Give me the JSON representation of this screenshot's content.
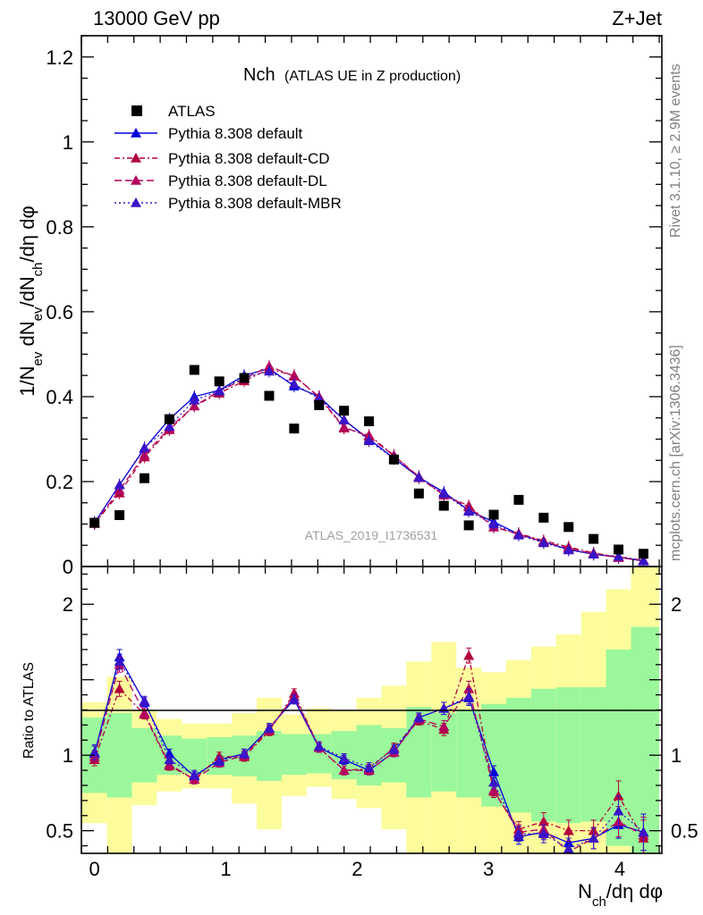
{
  "header": {
    "left": "13000 GeV pp",
    "right": "Z+Jet"
  },
  "side_text": {
    "top": "Rivet 3.1.10, ≥ 2.9M events",
    "bottom": "mcplots.cern.ch [arXiv:1306.3436]"
  },
  "watermark": "ATLAS_2019_I1736531",
  "chart_data": [
    {
      "type": "scatter",
      "title": "Nch",
      "subtitle": "(ATLAS UE in Z production)",
      "ylabel": "1/N_ev dN_ev/dN_ch/dη dφ",
      "ylim": [
        0,
        1.25
      ],
      "yticks": [
        "0",
        "0.2",
        "0.4",
        "0.6",
        "0.8",
        "1",
        "1.2"
      ],
      "x": [
        0.0,
        0.19,
        0.38,
        0.57,
        0.76,
        0.95,
        1.14,
        1.33,
        1.52,
        1.71,
        1.9,
        2.09,
        2.28,
        2.47,
        2.66,
        2.85,
        3.04,
        3.23,
        3.42,
        3.61,
        3.8,
        3.99,
        4.18
      ],
      "series": [
        {
          "name": "ATLAS",
          "color": "#000000",
          "marker": "square",
          "values": [
            0.103,
            0.121,
            0.208,
            0.347,
            0.463,
            0.436,
            0.444,
            0.402,
            0.325,
            0.38,
            0.367,
            0.342,
            0.252,
            0.172,
            0.143,
            0.097,
            0.122,
            0.157,
            0.115,
            0.093,
            0.065,
            0.04,
            0.03
          ]
        },
        {
          "name": "Pythia 8.308 default",
          "color": "#0000dd",
          "dash": "",
          "values": [
            0.103,
            0.192,
            0.278,
            0.347,
            0.4,
            0.415,
            0.45,
            0.466,
            0.425,
            0.4,
            0.345,
            0.3,
            0.255,
            0.21,
            0.175,
            0.132,
            0.105,
            0.076,
            0.058,
            0.04,
            0.029,
            0.022,
            0.013
          ]
        },
        {
          "name": "Pythia 8.308 default-CD",
          "color": "#b3003b",
          "dash": "6,3,2,3",
          "values": [
            0.101,
            0.173,
            0.258,
            0.322,
            0.378,
            0.408,
            0.437,
            0.465,
            0.45,
            0.398,
            0.326,
            0.309,
            0.262,
            0.209,
            0.168,
            0.143,
            0.093,
            0.078,
            0.061,
            0.046,
            0.032,
            0.022,
            0.015
          ]
        },
        {
          "name": "Pythia 8.308 default-DL",
          "color": "#b3005f",
          "dash": "8,4",
          "values": [
            0.102,
            0.18,
            0.263,
            0.326,
            0.378,
            0.413,
            0.442,
            0.472,
            0.448,
            0.4,
            0.328,
            0.306,
            0.261,
            0.212,
            0.168,
            0.14,
            0.093,
            0.076,
            0.058,
            0.043,
            0.03,
            0.021,
            0.014
          ]
        },
        {
          "name": "Pythia 8.308 default-MBR",
          "color": "#3a14c8",
          "dash": "2,3",
          "values": [
            0.104,
            0.192,
            0.28,
            0.33,
            0.392,
            0.413,
            0.445,
            0.46,
            0.43,
            0.395,
            0.346,
            0.296,
            0.254,
            0.21,
            0.172,
            0.13,
            0.1,
            0.074,
            0.056,
            0.039,
            0.029,
            0.024,
            0.014
          ]
        }
      ]
    },
    {
      "type": "scatter",
      "ylabel": "Ratio to ATLAS",
      "xlabel": "N_ch/dη dφ",
      "ylim": [
        0.35,
        2.25
      ],
      "xlim": [
        -0.1,
        4.32
      ],
      "yticks": [
        "0.5",
        "1",
        "2"
      ],
      "xticks": [
        "0",
        "1",
        "2",
        "3",
        "4"
      ],
      "bins": [
        -0.1,
        0.095,
        0.285,
        0.475,
        0.665,
        0.855,
        1.045,
        1.235,
        1.425,
        1.615,
        1.805,
        1.995,
        2.185,
        2.375,
        2.565,
        2.755,
        2.945,
        3.135,
        3.325,
        3.515,
        3.705,
        3.895,
        4.085,
        4.3
      ],
      "band_inner": [
        [
          0.75,
          1.25
        ],
        [
          0.72,
          1.28
        ],
        [
          0.82,
          1.18
        ],
        [
          0.87,
          1.13
        ],
        [
          0.88,
          1.11
        ],
        [
          0.87,
          1.12
        ],
        [
          0.86,
          1.13
        ],
        [
          0.83,
          1.16
        ],
        [
          0.87,
          1.14
        ],
        [
          0.88,
          1.14
        ],
        [
          0.84,
          1.16
        ],
        [
          0.8,
          1.2
        ],
        [
          0.82,
          1.18
        ],
        [
          0.72,
          1.32
        ],
        [
          0.76,
          1.28
        ],
        [
          0.72,
          1.3
        ],
        [
          0.66,
          1.34
        ],
        [
          0.62,
          1.38
        ],
        [
          0.56,
          1.44
        ],
        [
          0.55,
          1.45
        ],
        [
          0.56,
          1.45
        ],
        [
          0.4,
          1.7
        ],
        [
          0.35,
          1.85
        ]
      ],
      "band_outer": [
        [
          0.55,
          1.35
        ],
        [
          0.35,
          1.52
        ],
        [
          0.67,
          1.3
        ],
        [
          0.76,
          1.24
        ],
        [
          0.78,
          1.21
        ],
        [
          0.78,
          1.21
        ],
        [
          0.68,
          1.28
        ],
        [
          0.51,
          1.38
        ],
        [
          0.73,
          1.27
        ],
        [
          0.79,
          1.31
        ],
        [
          0.71,
          1.3
        ],
        [
          0.65,
          1.38
        ],
        [
          0.51,
          1.46
        ],
        [
          0.35,
          1.62
        ],
        [
          0.35,
          1.75
        ],
        [
          0.35,
          1.58
        ],
        [
          0.35,
          1.55
        ],
        [
          0.35,
          1.63
        ],
        [
          0.35,
          1.72
        ],
        [
          0.35,
          1.8
        ],
        [
          0.35,
          1.95
        ],
        [
          0.35,
          2.1
        ],
        [
          0.35,
          2.25
        ]
      ],
      "band_colors": {
        "inner": "#9bf79b",
        "outer": "#fcfc9c"
      },
      "series": [
        {
          "name": "Pythia 8.308 default",
          "color": "#0000dd",
          "values": [
            1.01,
            1.65,
            1.35,
            1.01,
            0.86,
            0.97,
            1.01,
            1.18,
            1.37,
            1.05,
            0.97,
            0.9,
            1.02,
            1.25,
            1.31,
            1.38,
            0.89,
            0.46,
            0.49,
            0.42,
            0.45,
            0.54,
            0.49
          ],
          "err": [
            0.05,
            0.05,
            0.03,
            0.03,
            0.03,
            0.03,
            0.03,
            0.03,
            0.03,
            0.03,
            0.03,
            0.03,
            0.03,
            0.03,
            0.04,
            0.05,
            0.04,
            0.05,
            0.05,
            0.06,
            0.07,
            0.09,
            0.12
          ]
        },
        {
          "name": "Pythia 8.308 default-CD",
          "color": "#b3003b",
          "values": [
            0.97,
            1.44,
            1.27,
            0.93,
            0.84,
            0.99,
            0.99,
            1.16,
            1.41,
            1.05,
            0.9,
            0.91,
            1.05,
            1.23,
            1.17,
            1.66,
            0.76,
            0.51,
            0.56,
            0.5,
            0.5,
            0.73,
            0.45
          ],
          "err": [
            0.04,
            0.05,
            0.03,
            0.03,
            0.03,
            0.03,
            0.03,
            0.03,
            0.03,
            0.03,
            0.03,
            0.03,
            0.03,
            0.03,
            0.04,
            0.05,
            0.04,
            0.05,
            0.06,
            0.07,
            0.07,
            0.1,
            0.12
          ]
        },
        {
          "name": "Pythia 8.308 default-DL",
          "color": "#b3005f",
          "values": [
            0.99,
            1.6,
            1.28,
            0.94,
            0.84,
            0.95,
            1.0,
            1.17,
            1.39,
            1.05,
            0.9,
            0.9,
            1.02,
            1.24,
            1.19,
            1.44,
            0.77,
            0.49,
            0.51,
            0.36,
            0.45,
            0.56,
            0.47
          ],
          "err": [
            0.04,
            0.05,
            0.03,
            0.03,
            0.03,
            0.03,
            0.03,
            0.03,
            0.03,
            0.03,
            0.03,
            0.03,
            0.03,
            0.03,
            0.04,
            0.05,
            0.04,
            0.05,
            0.06,
            0.07,
            0.07,
            0.1,
            0.12
          ]
        },
        {
          "name": "Pythia 8.308 default-MBR",
          "color": "#3a14c8",
          "values": [
            1.02,
            1.62,
            1.36,
            0.97,
            0.87,
            0.96,
            1.01,
            1.18,
            1.37,
            1.06,
            0.98,
            0.92,
            1.04,
            1.25,
            1.31,
            1.39,
            0.82,
            0.48,
            0.48,
            0.38,
            0.45,
            0.63,
            0.49
          ],
          "err": [
            0.05,
            0.05,
            0.03,
            0.03,
            0.03,
            0.03,
            0.03,
            0.03,
            0.03,
            0.03,
            0.03,
            0.03,
            0.03,
            0.03,
            0.04,
            0.05,
            0.04,
            0.05,
            0.06,
            0.07,
            0.07,
            0.1,
            0.12
          ]
        }
      ]
    }
  ]
}
